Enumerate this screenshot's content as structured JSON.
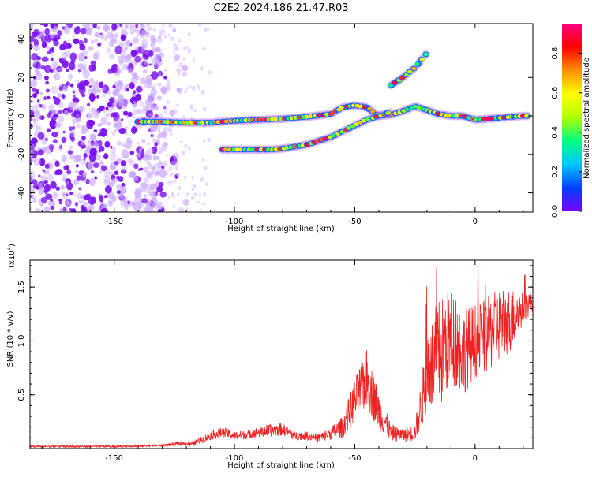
{
  "title": "C2E2.2024.186.21.47.R03",
  "chart_data": [
    {
      "type": "heatmap",
      "xlabel": "Height of straight line (km)",
      "ylabel": "Frequency (Hz)",
      "xlim": [
        -185,
        24
      ],
      "ylim": [
        -50,
        48
      ],
      "xticks": [
        -150,
        -100,
        -50,
        0
      ],
      "yticks": [
        -40,
        -20,
        0,
        20,
        40
      ],
      "colorbar": {
        "label": "Normalized spectral amplitude",
        "range": [
          0.0,
          0.95
        ],
        "ticks": [
          0.0,
          0.2,
          0.4,
          0.6,
          0.8
        ],
        "colors": [
          "#7b00ff",
          "#0040ff",
          "#00c8ff",
          "#00ff80",
          "#b0ff00",
          "#ffff00",
          "#ff9000",
          "#ff0000",
          "#ff0080"
        ]
      },
      "noise_region_x": [
        -185,
        -120
      ],
      "tracks": [
        {
          "name": "main",
          "points": [
            [
              -140,
              -3
            ],
            [
              -130,
              -3
            ],
            [
              -120,
              -3.5
            ],
            [
              -110,
              -3.5
            ],
            [
              -100,
              -2.5
            ],
            [
              -90,
              -2
            ],
            [
              -80,
              -1.5
            ],
            [
              -70,
              -0.5
            ],
            [
              -60,
              1
            ],
            [
              -55,
              4.5
            ],
            [
              -50,
              5.5
            ],
            [
              -45,
              4.5
            ],
            [
              -40,
              0
            ],
            [
              -35,
              0.5
            ],
            [
              -30,
              2.5
            ],
            [
              -25,
              5
            ],
            [
              -20,
              3
            ],
            [
              -15,
              1
            ],
            [
              -10,
              0
            ],
            [
              -5,
              0
            ],
            [
              0,
              -2
            ],
            [
              5,
              -1.5
            ],
            [
              10,
              -1
            ],
            [
              15,
              -0.5
            ],
            [
              20,
              0
            ],
            [
              23,
              0
            ]
          ]
        },
        {
          "name": "lower",
          "points": [
            [
              -105,
              -17.5
            ],
            [
              -95,
              -17.5
            ],
            [
              -85,
              -17.5
            ],
            [
              -80,
              -17
            ],
            [
              -75,
              -16
            ],
            [
              -70,
              -15
            ],
            [
              -65,
              -13
            ],
            [
              -60,
              -11
            ],
            [
              -55,
              -8
            ],
            [
              -50,
              -5
            ],
            [
              -45,
              -2
            ],
            [
              -40,
              0
            ],
            [
              -35,
              2
            ]
          ]
        },
        {
          "name": "upper",
          "points": [
            [
              -35,
              16
            ],
            [
              -30,
              20
            ],
            [
              -25,
              25
            ],
            [
              -20,
              33
            ]
          ]
        }
      ]
    },
    {
      "type": "line",
      "xlabel": "Height of straight line (km)",
      "ylabel": "SNR (10 * v/v)",
      "exponent_label": "(x10",
      "exponent_power": "4",
      "exponent_close": ")",
      "xlim": [
        -185,
        24
      ],
      "ylim": [
        0,
        1.75
      ],
      "xticks": [
        -150,
        -100,
        -50,
        0
      ],
      "yticks": [
        0.5,
        1.0,
        1.5
      ],
      "ytick_labels": [
        "0.5",
        "1.0",
        "1.5"
      ],
      "color": "#ee2222",
      "series": [
        {
          "x": [
            -185,
            -170,
            -150,
            -130,
            -122,
            -118,
            -110,
            -105,
            -100,
            -95,
            -90,
            -85,
            -80,
            -75,
            -70,
            -65,
            -60,
            -55,
            -50,
            -45,
            -40,
            -35,
            -30,
            -25,
            -22,
            -20,
            -15,
            -10,
            -5,
            0,
            5,
            10,
            15,
            20,
            24
          ],
          "y": [
            0.02,
            0.02,
            0.02,
            0.03,
            0.05,
            0.04,
            0.12,
            0.15,
            0.12,
            0.13,
            0.15,
            0.17,
            0.18,
            0.12,
            0.12,
            0.1,
            0.14,
            0.2,
            0.45,
            0.65,
            0.35,
            0.15,
            0.12,
            0.15,
            0.45,
            0.75,
            0.85,
            1.05,
            0.9,
            1.0,
            1.05,
            1.15,
            1.2,
            1.3,
            1.38
          ],
          "spread": [
            0.01,
            0.01,
            0.01,
            0.01,
            0.02,
            0.02,
            0.04,
            0.05,
            0.04,
            0.04,
            0.05,
            0.06,
            0.06,
            0.04,
            0.04,
            0.04,
            0.06,
            0.1,
            0.2,
            0.28,
            0.18,
            0.08,
            0.06,
            0.08,
            0.25,
            0.4,
            0.55,
            0.45,
            0.4,
            0.35,
            0.35,
            0.35,
            0.3,
            0.15,
            0.1
          ]
        }
      ]
    }
  ]
}
